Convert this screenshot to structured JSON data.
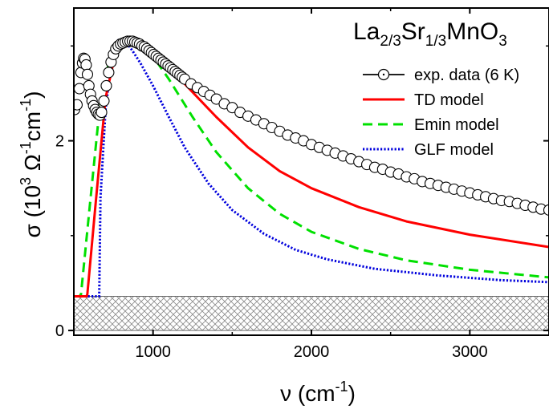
{
  "chart_data": {
    "type": "line",
    "title": {
      "parts": [
        {
          "text": "La",
          "sub": false
        },
        {
          "text": "2/3",
          "sub": true
        },
        {
          "text": "Sr",
          "sub": false
        },
        {
          "text": "1/3",
          "sub": true
        },
        {
          "text": "MnO",
          "sub": false
        },
        {
          "text": "3",
          "sub": true
        }
      ]
    },
    "xlabel": {
      "base": "ν (cm",
      "sup": "-1",
      "tail": ")"
    },
    "ylabel": {
      "a": "σ (10",
      "sup1": "3",
      "b": " Ω",
      "sup2": "-1",
      "c": "cm",
      "sup3": "-1",
      "d": ")"
    },
    "xlim": [
      500,
      3500
    ],
    "ylim": [
      -0.05,
      3.4
    ],
    "xticks": [
      1000,
      2000,
      3000
    ],
    "yticks": [
      0,
      2
    ],
    "xtick_labels": [
      "1000",
      "2000",
      "3000"
    ],
    "ytick_labels": [
      "0",
      "2"
    ],
    "hatched_band": {
      "y0": 0,
      "y1": 0.36
    },
    "legend_position": "top-right",
    "series": [
      {
        "name": "exp. data (6 K)",
        "style": "circles",
        "color": "#000000",
        "x": [
          505,
          520,
          535,
          545,
          555,
          562,
          570,
          578,
          586,
          595,
          605,
          615,
          625,
          635,
          645,
          655,
          665,
          675,
          690,
          705,
          720,
          735,
          750,
          765,
          780,
          795,
          810,
          825,
          840,
          855,
          870,
          885,
          900,
          915,
          930,
          945,
          960,
          975,
          990,
          1005,
          1020,
          1035,
          1050,
          1065,
          1080,
          1095,
          1110,
          1125,
          1140,
          1155,
          1170,
          1185,
          1200,
          1240,
          1280,
          1320,
          1360,
          1400,
          1450,
          1500,
          1550,
          1600,
          1650,
          1700,
          1750,
          1800,
          1850,
          1900,
          1950,
          2000,
          2050,
          2100,
          2150,
          2200,
          2250,
          2300,
          2350,
          2400,
          2450,
          2500,
          2550,
          2600,
          2650,
          2700,
          2750,
          2800,
          2850,
          2900,
          2950,
          3000,
          3050,
          3100,
          3150,
          3200,
          3250,
          3300,
          3350,
          3400,
          3450,
          3500
        ],
        "y": [
          2.33,
          2.38,
          2.55,
          2.72,
          2.82,
          2.87,
          2.86,
          2.8,
          2.7,
          2.58,
          2.49,
          2.42,
          2.37,
          2.33,
          2.3,
          2.28,
          2.27,
          2.3,
          2.42,
          2.58,
          2.72,
          2.83,
          2.91,
          2.97,
          3.0,
          3.02,
          3.03,
          3.04,
          3.05,
          3.05,
          3.05,
          3.04,
          3.03,
          3.02,
          3.0,
          2.99,
          2.97,
          2.95,
          2.93,
          2.91,
          2.89,
          2.87,
          2.85,
          2.83,
          2.81,
          2.79,
          2.77,
          2.75,
          2.73,
          2.71,
          2.69,
          2.67,
          2.65,
          2.6,
          2.56,
          2.52,
          2.48,
          2.44,
          2.39,
          2.35,
          2.3,
          2.26,
          2.22,
          2.18,
          2.14,
          2.1,
          2.06,
          2.03,
          2.0,
          1.96,
          1.93,
          1.9,
          1.87,
          1.84,
          1.81,
          1.78,
          1.75,
          1.72,
          1.7,
          1.67,
          1.65,
          1.62,
          1.6,
          1.57,
          1.55,
          1.53,
          1.51,
          1.49,
          1.47,
          1.45,
          1.43,
          1.41,
          1.39,
          1.37,
          1.36,
          1.34,
          1.32,
          1.3,
          1.28,
          1.27
        ]
      },
      {
        "name": "TD model",
        "style": "solid",
        "color": "#ff0000",
        "x": [
          500,
          580,
          585,
          640,
          700,
          760,
          820,
          880,
          950,
          1050,
          1200,
          1400,
          1600,
          1800,
          2000,
          2300,
          2600,
          3000,
          3500
        ],
        "y": [
          0.36,
          0.36,
          0.38,
          1.38,
          2.45,
          2.9,
          3.03,
          3.05,
          2.98,
          2.85,
          2.6,
          2.25,
          1.93,
          1.68,
          1.5,
          1.3,
          1.15,
          1.01,
          0.88
        ]
      },
      {
        "name": "Emin model",
        "style": "dashed",
        "color": "#00e000",
        "x": [
          500,
          535,
          545,
          600,
          660,
          720,
          790,
          860,
          920,
          1000,
          1100,
          1250,
          1400,
          1600,
          1800,
          2000,
          2300,
          2600,
          3000,
          3500
        ],
        "y": [
          0.36,
          0.36,
          0.38,
          1.3,
          2.3,
          2.82,
          2.99,
          3.03,
          3.0,
          2.89,
          2.65,
          2.25,
          1.88,
          1.5,
          1.23,
          1.04,
          0.86,
          0.74,
          0.64,
          0.56
        ]
      },
      {
        "name": "GLF model",
        "style": "dotted",
        "color": "#0000dd",
        "x": [
          500,
          660,
          668,
          700,
          740,
          780,
          800,
          830,
          870,
          920,
          1000,
          1100,
          1200,
          1350,
          1500,
          1700,
          1900,
          2100,
          2400,
          2800,
          3200,
          3500
        ],
        "y": [
          0.36,
          0.36,
          1.4,
          2.33,
          2.88,
          3.06,
          3.07,
          3.04,
          2.95,
          2.82,
          2.58,
          2.25,
          1.93,
          1.55,
          1.27,
          1.02,
          0.85,
          0.75,
          0.65,
          0.58,
          0.53,
          0.51
        ]
      }
    ]
  }
}
